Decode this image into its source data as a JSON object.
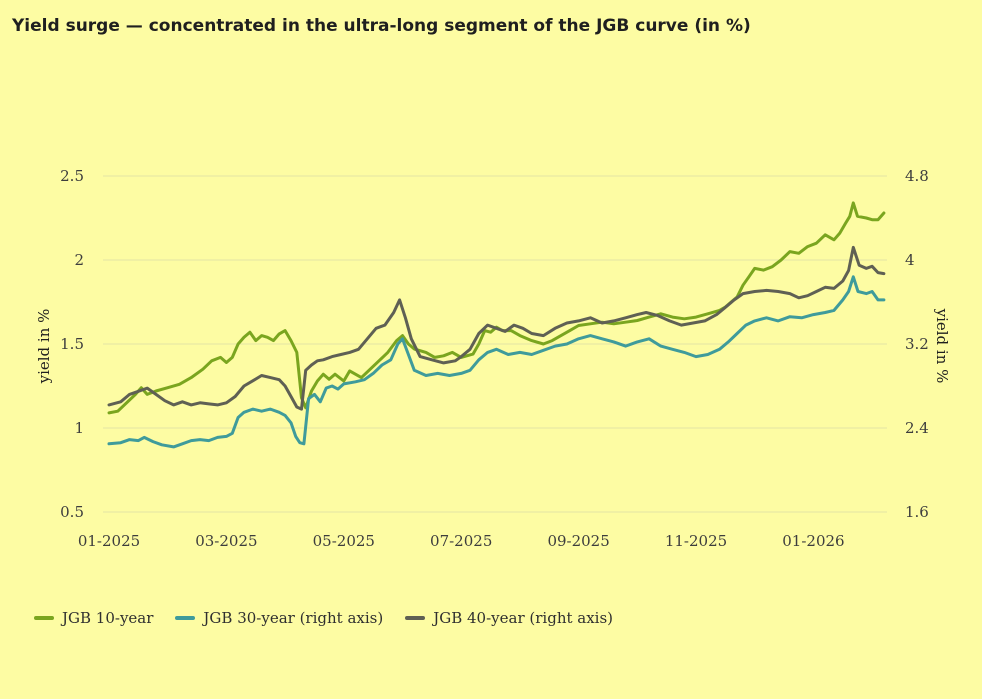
{
  "chart_data": {
    "type": "line",
    "title": "Yield surge — concentrated in the ultra-long segment of the JGB curve (in %)",
    "xlabel": "",
    "ylabel": "yield in %",
    "ylabel_right": "yield in %",
    "ylim": [
      0.5,
      2.5
    ],
    "ylim_right": [
      1.6,
      4.8
    ],
    "yticks": [
      0.5,
      1,
      1.5,
      2,
      2.5
    ],
    "yticks_right": [
      1.6,
      2.4,
      3.2,
      4,
      4.8
    ],
    "xlim": [
      0,
      13.1
    ],
    "x_ticks": [
      {
        "x": 0,
        "label": "01-2025"
      },
      {
        "x": 2,
        "label": "03-2025"
      },
      {
        "x": 4,
        "label": "05-2025"
      },
      {
        "x": 6,
        "label": "07-2025"
      },
      {
        "x": 8,
        "label": "09-2025"
      },
      {
        "x": 10,
        "label": "11-2025"
      },
      {
        "x": 12,
        "label": "01-2026"
      }
    ],
    "grid": true,
    "legend_position": "bottom-left",
    "series": [
      {
        "name": "JGB 10-year",
        "axis": "left",
        "color": "#7aa51f",
        "points": [
          [
            0.0,
            1.09
          ],
          [
            0.15,
            1.1
          ],
          [
            0.3,
            1.15
          ],
          [
            0.45,
            1.2
          ],
          [
            0.55,
            1.24
          ],
          [
            0.65,
            1.2
          ],
          [
            0.8,
            1.22
          ],
          [
            1.0,
            1.24
          ],
          [
            1.2,
            1.26
          ],
          [
            1.4,
            1.3
          ],
          [
            1.6,
            1.35
          ],
          [
            1.75,
            1.4
          ],
          [
            1.9,
            1.42
          ],
          [
            2.0,
            1.39
          ],
          [
            2.1,
            1.42
          ],
          [
            2.2,
            1.5
          ],
          [
            2.3,
            1.54
          ],
          [
            2.4,
            1.57
          ],
          [
            2.5,
            1.52
          ],
          [
            2.6,
            1.55
          ],
          [
            2.7,
            1.54
          ],
          [
            2.8,
            1.52
          ],
          [
            2.9,
            1.56
          ],
          [
            3.0,
            1.58
          ],
          [
            3.1,
            1.52
          ],
          [
            3.2,
            1.45
          ],
          [
            3.28,
            1.18
          ],
          [
            3.35,
            1.12
          ],
          [
            3.45,
            1.22
          ],
          [
            3.55,
            1.28
          ],
          [
            3.65,
            1.32
          ],
          [
            3.75,
            1.29
          ],
          [
            3.85,
            1.32
          ],
          [
            4.0,
            1.28
          ],
          [
            4.1,
            1.34
          ],
          [
            4.3,
            1.3
          ],
          [
            4.45,
            1.35
          ],
          [
            4.6,
            1.4
          ],
          [
            4.75,
            1.45
          ],
          [
            4.9,
            1.52
          ],
          [
            5.0,
            1.55
          ],
          [
            5.1,
            1.5
          ],
          [
            5.2,
            1.47
          ],
          [
            5.4,
            1.45
          ],
          [
            5.55,
            1.42
          ],
          [
            5.7,
            1.43
          ],
          [
            5.85,
            1.45
          ],
          [
            6.0,
            1.42
          ],
          [
            6.2,
            1.44
          ],
          [
            6.3,
            1.5
          ],
          [
            6.4,
            1.58
          ],
          [
            6.5,
            1.57
          ],
          [
            6.6,
            1.6
          ],
          [
            6.7,
            1.58
          ],
          [
            6.85,
            1.58
          ],
          [
            7.0,
            1.55
          ],
          [
            7.2,
            1.52
          ],
          [
            7.4,
            1.5
          ],
          [
            7.55,
            1.52
          ],
          [
            7.7,
            1.55
          ],
          [
            7.85,
            1.58
          ],
          [
            8.0,
            1.61
          ],
          [
            8.2,
            1.62
          ],
          [
            8.4,
            1.63
          ],
          [
            8.6,
            1.62
          ],
          [
            8.8,
            1.63
          ],
          [
            9.0,
            1.64
          ],
          [
            9.2,
            1.66
          ],
          [
            9.4,
            1.68
          ],
          [
            9.6,
            1.66
          ],
          [
            9.8,
            1.65
          ],
          [
            10.0,
            1.66
          ],
          [
            10.2,
            1.68
          ],
          [
            10.4,
            1.7
          ],
          [
            10.5,
            1.72
          ],
          [
            10.6,
            1.75
          ],
          [
            10.7,
            1.78
          ],
          [
            10.8,
            1.85
          ],
          [
            10.9,
            1.9
          ],
          [
            11.0,
            1.95
          ],
          [
            11.15,
            1.94
          ],
          [
            11.3,
            1.96
          ],
          [
            11.45,
            2.0
          ],
          [
            11.6,
            2.05
          ],
          [
            11.75,
            2.04
          ],
          [
            11.9,
            2.08
          ],
          [
            12.05,
            2.1
          ],
          [
            12.2,
            2.15
          ],
          [
            12.35,
            2.12
          ],
          [
            12.45,
            2.16
          ],
          [
            12.55,
            2.22
          ],
          [
            12.62,
            2.26
          ],
          [
            12.68,
            2.34
          ],
          [
            12.75,
            2.26
          ],
          [
            12.9,
            2.25
          ],
          [
            13.0,
            2.24
          ],
          [
            13.1,
            2.24
          ],
          [
            13.2,
            2.28
          ]
        ]
      },
      {
        "name": "JGB 30-year (right axis)",
        "axis": "right",
        "color": "#3f9b9b",
        "points": [
          [
            0.0,
            2.25
          ],
          [
            0.2,
            2.26
          ],
          [
            0.35,
            2.29
          ],
          [
            0.5,
            2.28
          ],
          [
            0.6,
            2.31
          ],
          [
            0.75,
            2.27
          ],
          [
            0.9,
            2.24
          ],
          [
            1.1,
            2.22
          ],
          [
            1.25,
            2.25
          ],
          [
            1.4,
            2.28
          ],
          [
            1.55,
            2.29
          ],
          [
            1.7,
            2.28
          ],
          [
            1.85,
            2.31
          ],
          [
            2.0,
            2.32
          ],
          [
            2.1,
            2.35
          ],
          [
            2.2,
            2.5
          ],
          [
            2.3,
            2.55
          ],
          [
            2.45,
            2.58
          ],
          [
            2.6,
            2.56
          ],
          [
            2.75,
            2.58
          ],
          [
            2.9,
            2.55
          ],
          [
            3.0,
            2.52
          ],
          [
            3.1,
            2.45
          ],
          [
            3.18,
            2.32
          ],
          [
            3.25,
            2.26
          ],
          [
            3.32,
            2.25
          ],
          [
            3.4,
            2.68
          ],
          [
            3.5,
            2.72
          ],
          [
            3.6,
            2.65
          ],
          [
            3.7,
            2.78
          ],
          [
            3.8,
            2.8
          ],
          [
            3.9,
            2.77
          ],
          [
            4.0,
            2.82
          ],
          [
            4.2,
            2.84
          ],
          [
            4.35,
            2.86
          ],
          [
            4.5,
            2.92
          ],
          [
            4.65,
            3.0
          ],
          [
            4.8,
            3.05
          ],
          [
            4.92,
            3.2
          ],
          [
            5.0,
            3.25
          ],
          [
            5.1,
            3.1
          ],
          [
            5.2,
            2.95
          ],
          [
            5.4,
            2.9
          ],
          [
            5.6,
            2.92
          ],
          [
            5.8,
            2.9
          ],
          [
            6.0,
            2.92
          ],
          [
            6.15,
            2.95
          ],
          [
            6.3,
            3.05
          ],
          [
            6.45,
            3.12
          ],
          [
            6.6,
            3.15
          ],
          [
            6.8,
            3.1
          ],
          [
            7.0,
            3.12
          ],
          [
            7.2,
            3.1
          ],
          [
            7.4,
            3.14
          ],
          [
            7.6,
            3.18
          ],
          [
            7.8,
            3.2
          ],
          [
            8.0,
            3.25
          ],
          [
            8.2,
            3.28
          ],
          [
            8.4,
            3.25
          ],
          [
            8.6,
            3.22
          ],
          [
            8.8,
            3.18
          ],
          [
            9.0,
            3.22
          ],
          [
            9.2,
            3.25
          ],
          [
            9.4,
            3.18
          ],
          [
            9.6,
            3.15
          ],
          [
            9.8,
            3.12
          ],
          [
            10.0,
            3.08
          ],
          [
            10.2,
            3.1
          ],
          [
            10.4,
            3.15
          ],
          [
            10.55,
            3.22
          ],
          [
            10.7,
            3.3
          ],
          [
            10.85,
            3.38
          ],
          [
            11.0,
            3.42
          ],
          [
            11.2,
            3.45
          ],
          [
            11.4,
            3.42
          ],
          [
            11.6,
            3.46
          ],
          [
            11.8,
            3.45
          ],
          [
            12.0,
            3.48
          ],
          [
            12.2,
            3.5
          ],
          [
            12.35,
            3.52
          ],
          [
            12.5,
            3.62
          ],
          [
            12.6,
            3.7
          ],
          [
            12.68,
            3.84
          ],
          [
            12.76,
            3.7
          ],
          [
            12.9,
            3.68
          ],
          [
            13.0,
            3.7
          ],
          [
            13.1,
            3.62
          ],
          [
            13.2,
            3.62
          ]
        ]
      },
      {
        "name": "JGB 40-year (right axis)",
        "axis": "right",
        "color": "#5f6054",
        "points": [
          [
            0.0,
            2.62
          ],
          [
            0.2,
            2.65
          ],
          [
            0.35,
            2.72
          ],
          [
            0.5,
            2.75
          ],
          [
            0.65,
            2.78
          ],
          [
            0.8,
            2.72
          ],
          [
            0.95,
            2.66
          ],
          [
            1.1,
            2.62
          ],
          [
            1.25,
            2.65
          ],
          [
            1.4,
            2.62
          ],
          [
            1.55,
            2.64
          ],
          [
            1.7,
            2.63
          ],
          [
            1.85,
            2.62
          ],
          [
            2.0,
            2.64
          ],
          [
            2.15,
            2.7
          ],
          [
            2.3,
            2.8
          ],
          [
            2.45,
            2.85
          ],
          [
            2.6,
            2.9
          ],
          [
            2.75,
            2.88
          ],
          [
            2.9,
            2.86
          ],
          [
            3.0,
            2.8
          ],
          [
            3.1,
            2.7
          ],
          [
            3.2,
            2.6
          ],
          [
            3.28,
            2.58
          ],
          [
            3.35,
            2.95
          ],
          [
            3.45,
            3.0
          ],
          [
            3.55,
            3.04
          ],
          [
            3.65,
            3.05
          ],
          [
            3.8,
            3.08
          ],
          [
            3.95,
            3.1
          ],
          [
            4.1,
            3.12
          ],
          [
            4.25,
            3.15
          ],
          [
            4.4,
            3.25
          ],
          [
            4.55,
            3.35
          ],
          [
            4.7,
            3.38
          ],
          [
            4.85,
            3.5
          ],
          [
            4.95,
            3.62
          ],
          [
            5.05,
            3.45
          ],
          [
            5.15,
            3.25
          ],
          [
            5.3,
            3.08
          ],
          [
            5.5,
            3.05
          ],
          [
            5.7,
            3.02
          ],
          [
            5.9,
            3.04
          ],
          [
            6.0,
            3.08
          ],
          [
            6.15,
            3.15
          ],
          [
            6.3,
            3.3
          ],
          [
            6.45,
            3.38
          ],
          [
            6.6,
            3.35
          ],
          [
            6.75,
            3.32
          ],
          [
            6.9,
            3.38
          ],
          [
            7.05,
            3.35
          ],
          [
            7.2,
            3.3
          ],
          [
            7.4,
            3.28
          ],
          [
            7.6,
            3.35
          ],
          [
            7.8,
            3.4
          ],
          [
            8.0,
            3.42
          ],
          [
            8.2,
            3.45
          ],
          [
            8.4,
            3.4
          ],
          [
            8.6,
            3.42
          ],
          [
            8.8,
            3.45
          ],
          [
            9.0,
            3.48
          ],
          [
            9.15,
            3.5
          ],
          [
            9.35,
            3.47
          ],
          [
            9.55,
            3.42
          ],
          [
            9.75,
            3.38
          ],
          [
            9.95,
            3.4
          ],
          [
            10.15,
            3.42
          ],
          [
            10.35,
            3.48
          ],
          [
            10.5,
            3.55
          ],
          [
            10.65,
            3.62
          ],
          [
            10.8,
            3.68
          ],
          [
            11.0,
            3.7
          ],
          [
            11.2,
            3.71
          ],
          [
            11.4,
            3.7
          ],
          [
            11.6,
            3.68
          ],
          [
            11.75,
            3.64
          ],
          [
            11.9,
            3.66
          ],
          [
            12.05,
            3.7
          ],
          [
            12.2,
            3.74
          ],
          [
            12.35,
            3.73
          ],
          [
            12.5,
            3.8
          ],
          [
            12.6,
            3.9
          ],
          [
            12.68,
            4.12
          ],
          [
            12.78,
            3.95
          ],
          [
            12.9,
            3.92
          ],
          [
            13.0,
            3.94
          ],
          [
            13.1,
            3.88
          ],
          [
            13.2,
            3.87
          ]
        ]
      }
    ]
  }
}
